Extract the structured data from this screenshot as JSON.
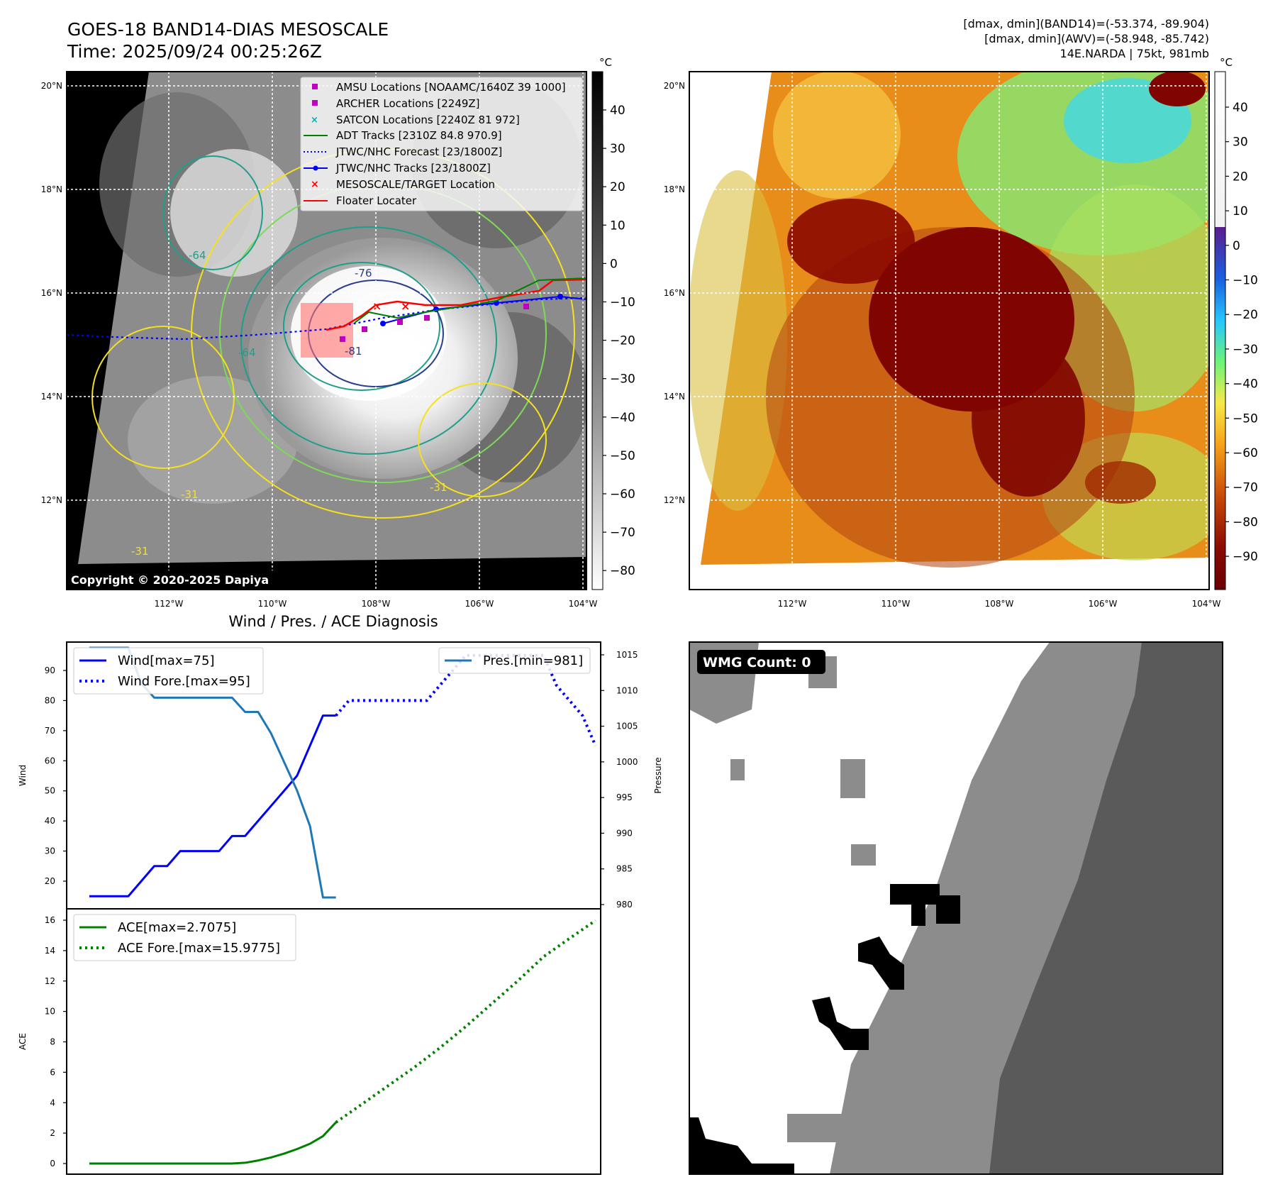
{
  "header": {
    "title": "GOES-18 BAND14-DIAS MESOSCALE",
    "time": "Time: 2025/09/24 00:25:26Z",
    "info_line1": "[dmax, dmin](BAND14)=(-53.374, -89.904)",
    "info_line2": "[dmax, dmin](AWV)=(-58.948, -85.742)",
    "info_line3": "14E.NARDA | 75kt, 981mb"
  },
  "map": {
    "lat_labels": [
      "20°N",
      "18°N",
      "16°N",
      "14°N",
      "12°N"
    ],
    "lon_labels": [
      "112°W",
      "110°W",
      "108°W",
      "106°W",
      "104°W"
    ],
    "copyright": "Copyright © 2020-2025 Dapiya",
    "contour_labels": [
      "-76",
      "-64",
      "-64",
      "-31",
      "-31",
      "-31",
      "-81"
    ]
  },
  "legend": {
    "items": [
      {
        "label": "AMSU Locations [NOAAMC/1640Z 39 1000]",
        "color": "#c000c0",
        "symbol": "square"
      },
      {
        "label": "ARCHER Locations [2249Z]",
        "color": "#c000c0",
        "symbol": "square"
      },
      {
        "label": "SATCON Locations [2240Z 81 972]",
        "color": "#00b0b0",
        "symbol": "x"
      },
      {
        "label": "ADT Tracks [2310Z 84.8 970.9]",
        "color": "#008000",
        "symbol": "line"
      },
      {
        "label": "JTWC/NHC Forecast [23/1800Z]",
        "color": "#0000ff",
        "symbol": "dotted"
      },
      {
        "label": "JTWC/NHC Tracks [23/1800Z]",
        "color": "#0000ff",
        "symbol": "line-dot"
      },
      {
        "label": "MESOSCALE/TARGET Location",
        "color": "#ff0000",
        "symbol": "x"
      },
      {
        "label": "Floater Locater",
        "color": "#ff0000",
        "symbol": "line"
      }
    ]
  },
  "colorbar_left": {
    "unit": "°C",
    "ticks": [
      "40",
      "30",
      "20",
      "10",
      "0",
      "−10",
      "−20",
      "−30",
      "−40",
      "−50",
      "−60",
      "−70",
      "−80"
    ]
  },
  "colorbar_right": {
    "unit": "°C",
    "ticks": [
      "40",
      "30",
      "20",
      "10",
      "0",
      "−10",
      "−20",
      "−30",
      "−40",
      "−50",
      "−60",
      "−70",
      "−80",
      "−90"
    ]
  },
  "diagnosis": {
    "title": "Wind / Pres. / ACE Diagnosis",
    "wind_ylabel": "Wind",
    "pres_ylabel": "Pressure",
    "ace_ylabel": "ACE",
    "wind_ticks": [
      "20",
      "30",
      "40",
      "50",
      "60",
      "70",
      "80",
      "90"
    ],
    "pres_ticks": [
      "980",
      "985",
      "990",
      "995",
      "1000",
      "1005",
      "1010",
      "1015"
    ],
    "ace_ticks": [
      "0",
      "2",
      "4",
      "6",
      "8",
      "10",
      "12",
      "14",
      "16"
    ],
    "legend_wind": "Wind[max=75]",
    "legend_wind_fore": "Wind Fore.[max=95]",
    "legend_pres": "Pres.[min=981]",
    "legend_ace": "ACE[max=2.7075]",
    "legend_ace_fore": "ACE Fore.[max=15.9775]"
  },
  "wmg": {
    "label": "WMG Count: 0"
  },
  "chart_data": [
    {
      "type": "line",
      "title": "Wind / Pres. / ACE Diagnosis",
      "ylabel": "Wind",
      "ylim": [
        15,
        98
      ],
      "x": [
        0,
        1,
        2,
        3,
        4,
        5,
        6,
        7,
        8,
        9,
        10,
        11,
        12,
        13,
        14,
        15,
        16,
        17,
        18,
        19
      ],
      "series": [
        {
          "name": "Wind[max=75]",
          "color": "#0000ff",
          "style": "solid",
          "values": [
            15,
            15,
            15,
            15,
            20,
            25,
            25,
            30,
            30,
            30,
            30,
            35,
            35,
            40,
            45,
            50,
            55,
            65,
            75,
            75
          ]
        },
        {
          "name": "Wind Fore.[max=95]",
          "color": "#0000ff",
          "style": "dotted",
          "x": [
            19,
            20,
            21,
            22,
            23,
            24,
            25,
            26,
            27,
            28,
            29,
            30,
            31,
            32,
            33,
            34,
            35,
            36,
            37,
            38,
            39
          ],
          "values": [
            75,
            80,
            80,
            80,
            80,
            80,
            80,
            80,
            85,
            90,
            95,
            95,
            95,
            95,
            95,
            95,
            95,
            85,
            80,
            75,
            65
          ]
        }
      ]
    },
    {
      "type": "line",
      "ylabel": "Pressure",
      "ylim": [
        979,
        1016
      ],
      "x": [
        0,
        1,
        2,
        3,
        4,
        5,
        6,
        7,
        8,
        9,
        10,
        11,
        12,
        13,
        14,
        15,
        16,
        17,
        18,
        19
      ],
      "series": [
        {
          "name": "Pres.[min=981]",
          "color": "#1f77b4",
          "style": "solid",
          "values": [
            1016,
            1016,
            1016,
            1016,
            1011,
            1009,
            1009,
            1009,
            1009,
            1009,
            1009,
            1009,
            1007,
            1007,
            1004,
            1000,
            996,
            991,
            981,
            981
          ]
        }
      ]
    },
    {
      "type": "line",
      "ylabel": "ACE",
      "ylim": [
        -0.8,
        16.5
      ],
      "x": [
        0,
        1,
        2,
        3,
        4,
        5,
        6,
        7,
        8,
        9,
        10,
        11,
        12,
        13,
        14,
        15,
        16,
        17,
        18,
        19
      ],
      "series": [
        {
          "name": "ACE[max=2.7075]",
          "color": "#008000",
          "style": "solid",
          "values": [
            0,
            0,
            0,
            0,
            0,
            0,
            0,
            0,
            0,
            0,
            0,
            0,
            0.05,
            0.2,
            0.4,
            0.65,
            0.95,
            1.3,
            1.8,
            2.7075
          ]
        },
        {
          "name": "ACE Fore.[max=15.9775]",
          "color": "#008000",
          "style": "dotted",
          "x": [
            19,
            21,
            23,
            25,
            27,
            29,
            31,
            33,
            35,
            37,
            39
          ],
          "values": [
            2.7075,
            3.9,
            5.1,
            6.3,
            7.6,
            9.0,
            10.5,
            12.0,
            13.6,
            14.8,
            15.9775
          ]
        }
      ]
    }
  ]
}
